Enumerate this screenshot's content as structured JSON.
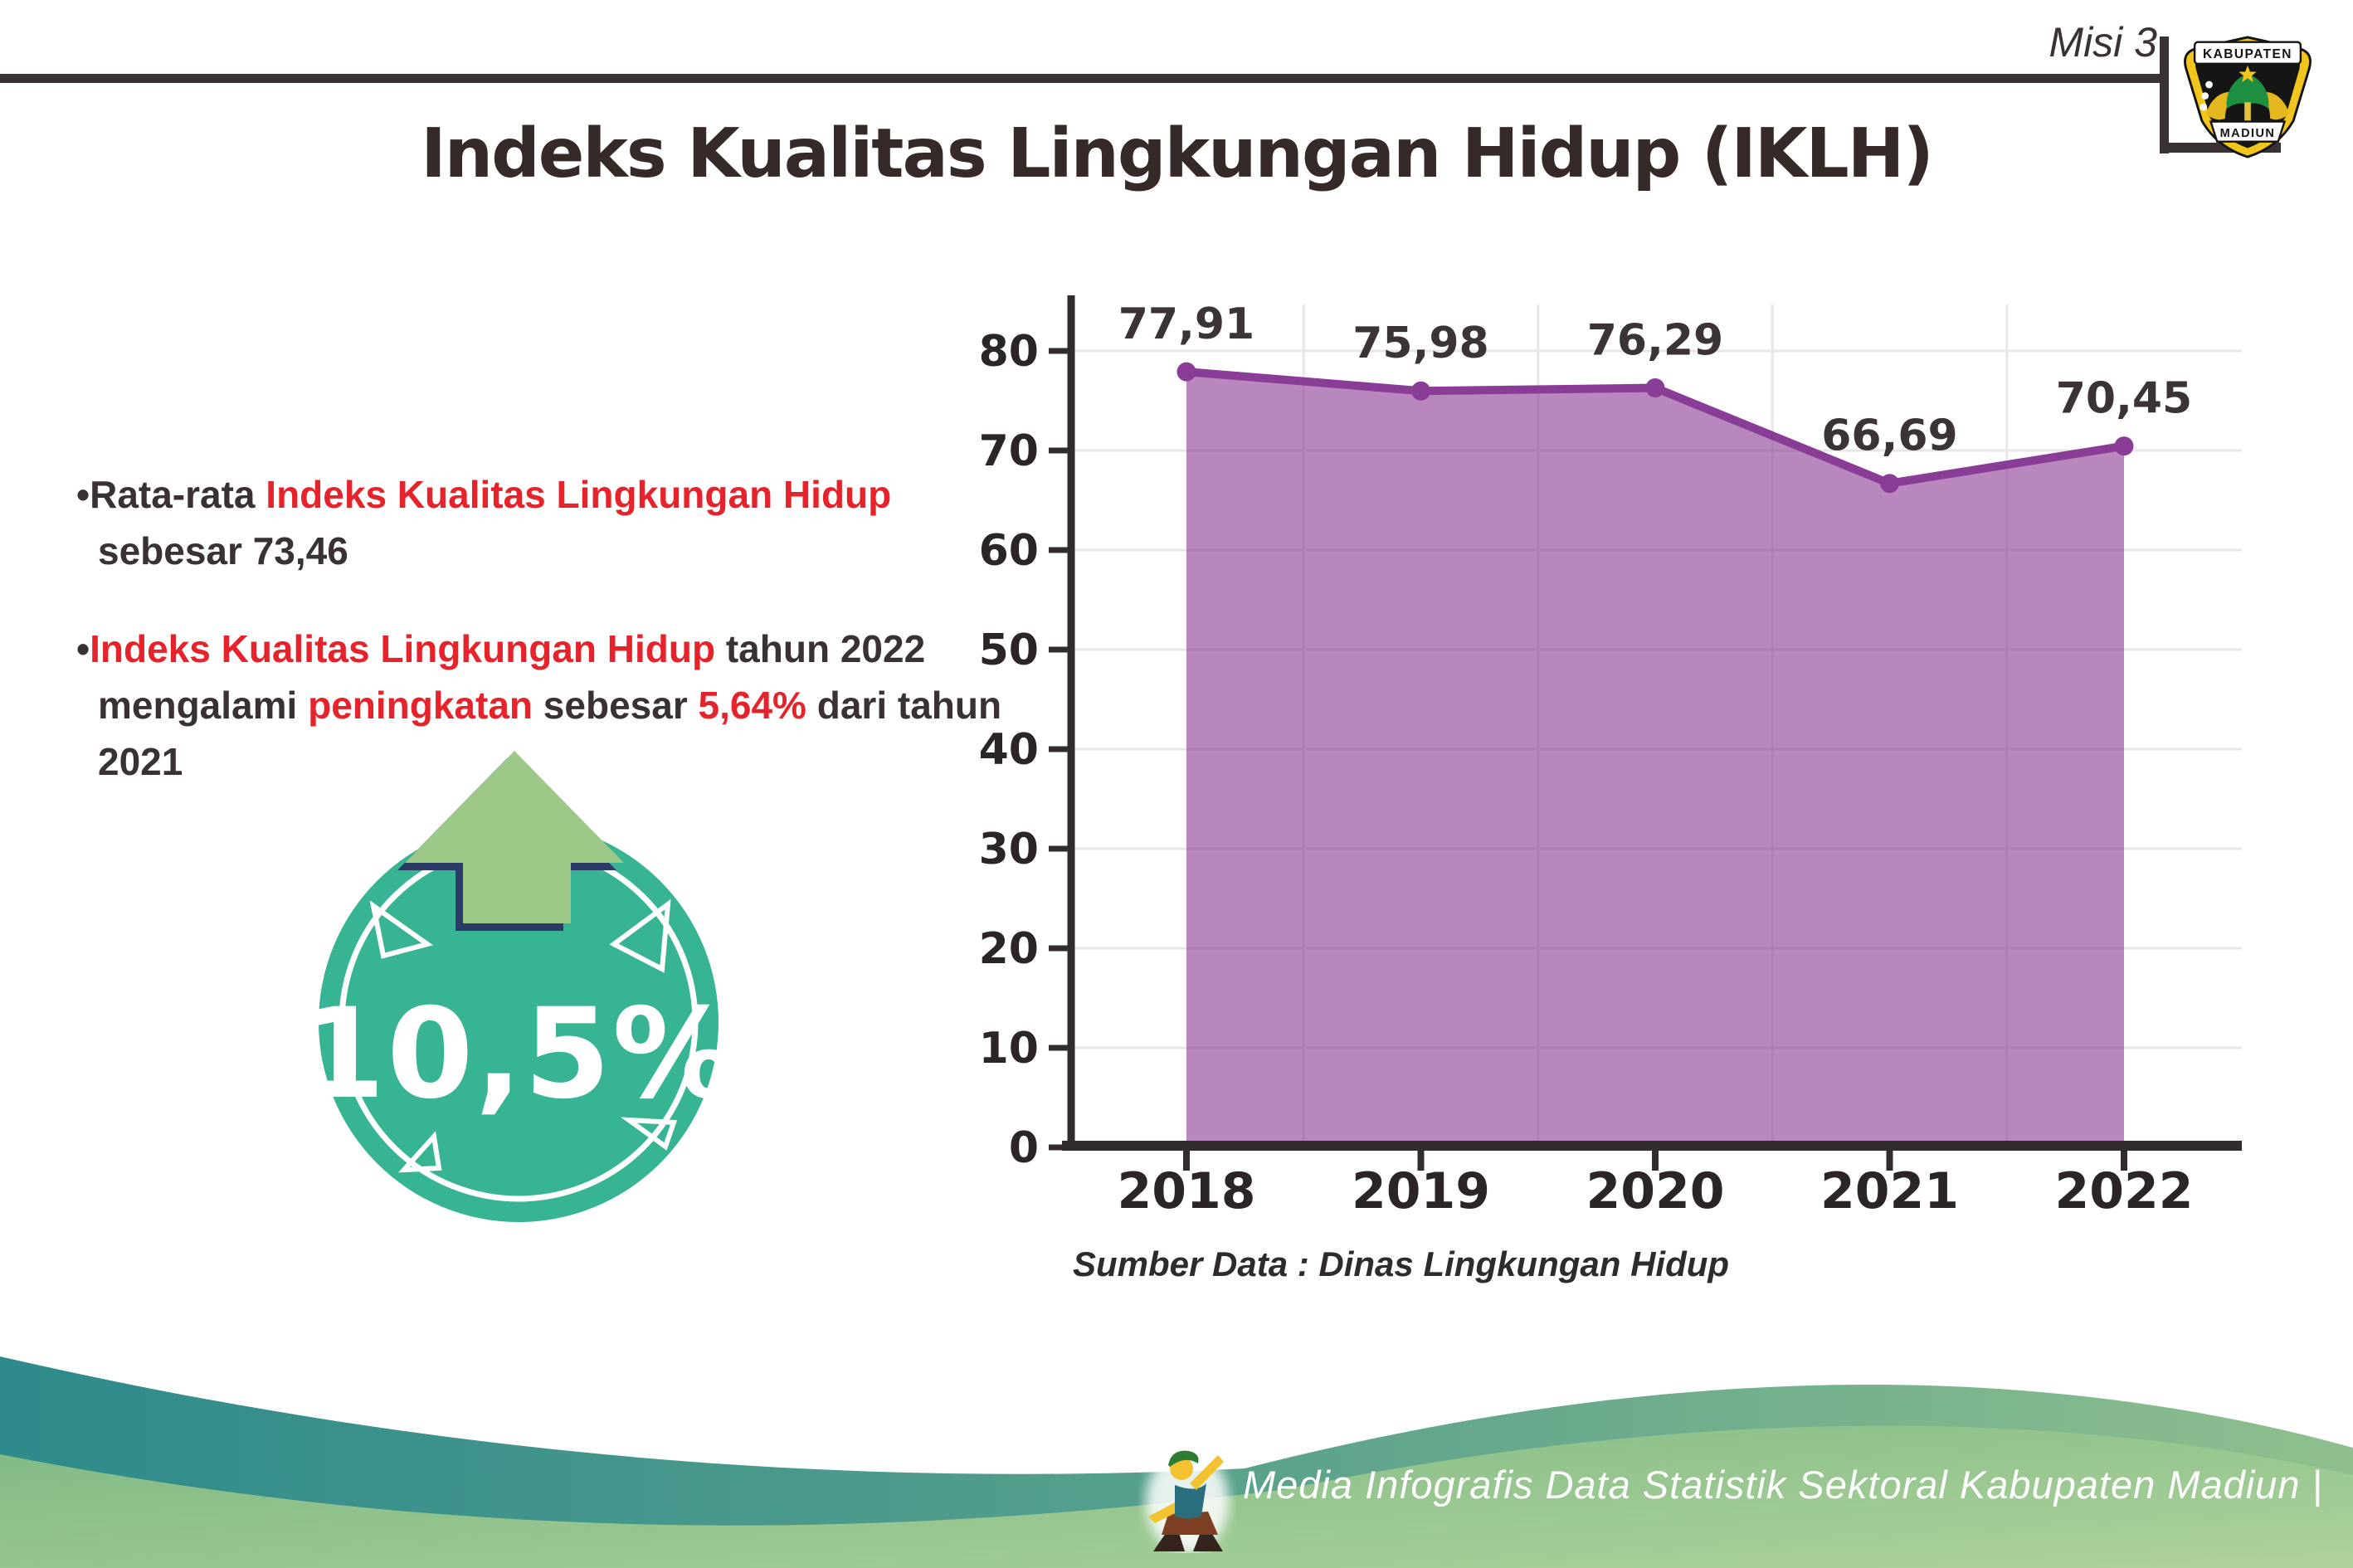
{
  "header": {
    "misi": "Misi 3",
    "title": "Indeks Kualitas Lingkungan Hidup (IKLH)",
    "logo": {
      "top": "KABUPATEN",
      "bottom": "MADIUN"
    }
  },
  "bullets": {
    "items": [
      [
        {
          "text": "•Rata-rata ",
          "style": "dark"
        },
        {
          "text": "Indeks Kualitas Lingkungan Hidup",
          "style": "red"
        },
        {
          "text": " sebesar 73,46",
          "style": "dark"
        }
      ],
      [
        {
          "text": "•",
          "style": "dark"
        },
        {
          "text": "Indeks Kualitas Lingkungan Hidup",
          "style": "red"
        },
        {
          "text": " tahun 2022 mengalami ",
          "style": "dark"
        },
        {
          "text": "peningkatan",
          "style": "red"
        },
        {
          "text": " sebesar ",
          "style": "dark"
        },
        {
          "text": "5,64%",
          "style": "red"
        },
        {
          "text": " dari tahun 2021",
          "style": "dark"
        }
      ]
    ]
  },
  "badge": {
    "value": "10,5%"
  },
  "chart_data": {
    "type": "area",
    "title": "",
    "xlabel": "",
    "ylabel": "",
    "categories": [
      "2018",
      "2019",
      "2020",
      "2021",
      "2022"
    ],
    "values": [
      77.91,
      75.98,
      76.29,
      66.69,
      70.45
    ],
    "point_labels": [
      "77,91",
      "75,98",
      "76,29",
      "66,69",
      "70,45"
    ],
    "ylim": [
      0,
      80
    ],
    "ytick_step": 10,
    "grid": true,
    "legend": "none"
  },
  "source_label": "Sumber Data : Dinas Lingkungan Hidup",
  "footer": {
    "credit": "Media Infografis Data Statistik Sektoral Kabupaten Madiun |"
  },
  "colors": {
    "ink": "#3a3132",
    "accent_red": "#e6232b",
    "chart_line": "#8a3d96",
    "chart_fill": "#8a3d96",
    "chart_axis": "#332c2d",
    "grid": "#e8e6e6",
    "badge_teal": "#37b493",
    "arrow_green": "#9dc888",
    "arrow_outline": "#2c3b66",
    "wave_teal": "#2e8a8b",
    "wave_green": "#8fbf8e",
    "footer_text": "#ffffff"
  }
}
